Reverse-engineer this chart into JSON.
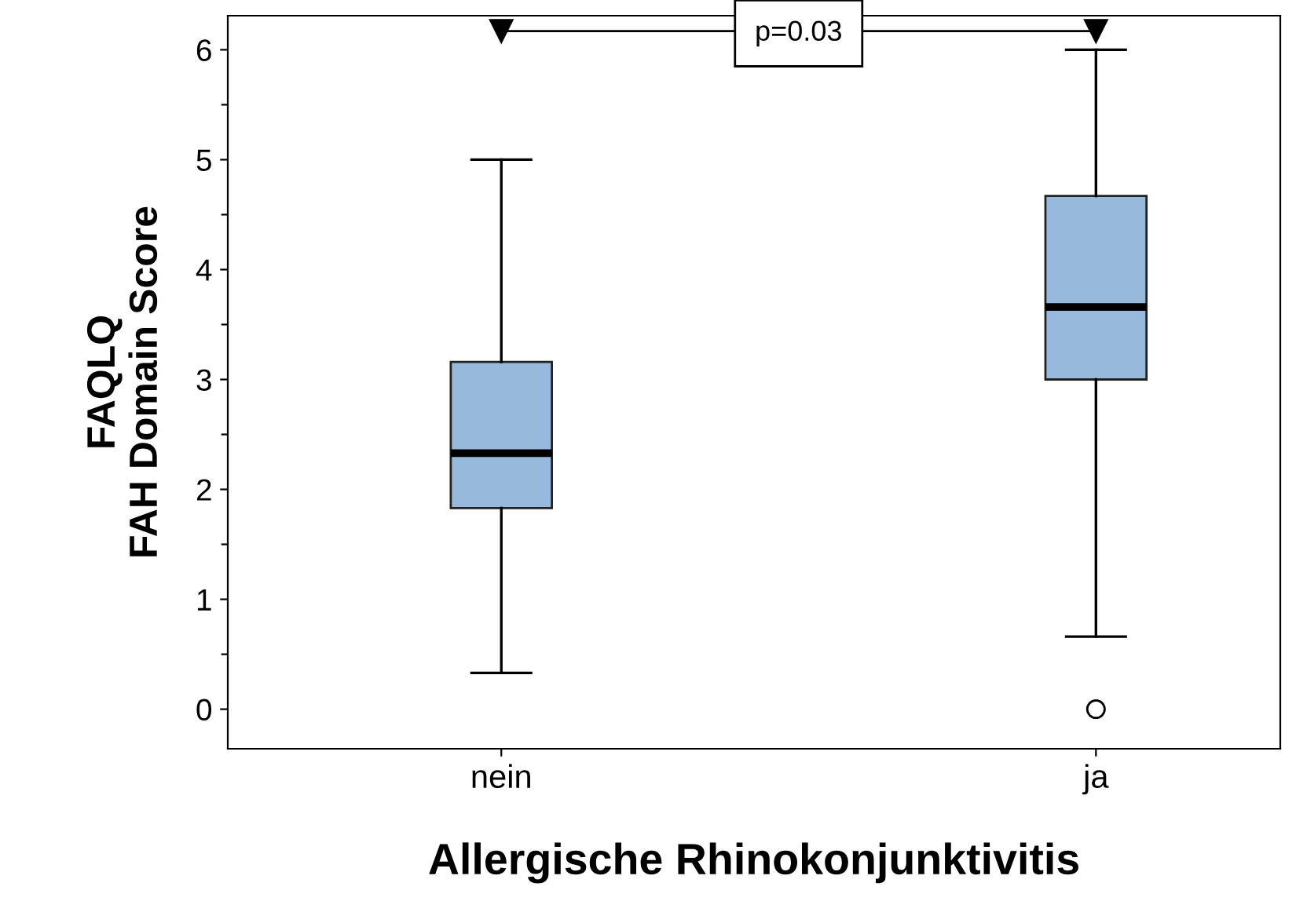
{
  "chart_data": {
    "type": "box",
    "xlabel": "Allergische Rhinokonjunktivitis",
    "ylabel": "FAQLQ\nFAH Domain Score",
    "categories": [
      "nein",
      "ja"
    ],
    "boxes": [
      {
        "low": 0.33,
        "q1": 1.83,
        "median": 2.33,
        "q3": 3.16,
        "high": 5.0
      },
      {
        "low": 0.66,
        "q1": 3.0,
        "median": 3.66,
        "q3": 4.67,
        "high": 6.0,
        "outliers": [
          0
        ]
      }
    ],
    "color": "#97b9dc",
    "ylim": [
      -0.36,
      6.31
    ],
    "yticks": [
      0,
      {
        "value": 0.5,
        "label": null
      },
      1,
      {
        "value": 1.5,
        "label": null
      },
      2,
      {
        "value": 2.5,
        "label": null
      },
      3,
      {
        "value": 3.5,
        "label": null
      },
      4,
      {
        "value": 4.5,
        "label": null
      },
      5,
      {
        "value": 5.5,
        "label": null
      },
      6
    ],
    "annotations": [
      "p=0.03"
    ],
    "grid": false
  }
}
